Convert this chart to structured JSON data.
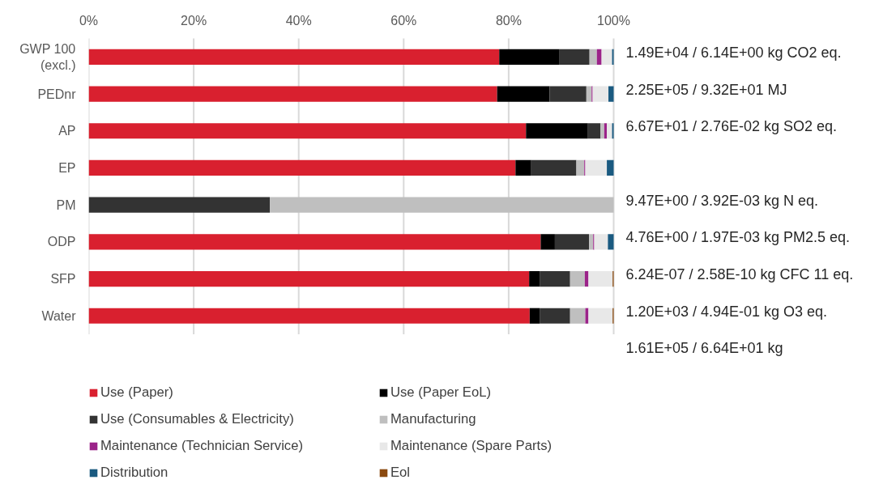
{
  "chart_data": {
    "type": "bar",
    "orientation": "horizontal",
    "stacked": true,
    "categories": [
      "GWP 100\n(excl.)",
      "PEDnr",
      "AP",
      "EP",
      "PM",
      "ODP",
      "SFP",
      "Water"
    ],
    "series": [
      {
        "name": "Use (Paper)",
        "color": "#d9202f",
        "values": [
          78.2,
          77.8,
          83.3,
          81.3,
          0,
          86.1,
          83.9,
          84.0
        ]
      },
      {
        "name": "Use (Paper EoL)",
        "color": "#000000",
        "values": [
          11.5,
          10.0,
          11.8,
          3.0,
          0,
          2.7,
          2.0,
          1.9
        ]
      },
      {
        "name": "Use (Consumables & Electricity)",
        "color": "#333333",
        "values": [
          5.7,
          7.0,
          2.4,
          8.6,
          34.5,
          6.5,
          5.8,
          5.8
        ]
      },
      {
        "name": "Manufacturing",
        "color": "#bfbfbf",
        "values": [
          1.4,
          1.0,
          0.7,
          1.5,
          65.5,
          0.8,
          2.8,
          2.9
        ]
      },
      {
        "name": "Maintenance (Technician Service)",
        "color": "#9b2389",
        "values": [
          0.9,
          0.2,
          0.5,
          0.2,
          0,
          0.2,
          0.7,
          0.6
        ]
      },
      {
        "name": "Maintenance (Spare Parts)",
        "color": "#e8e8e8",
        "values": [
          2.0,
          3.0,
          1.0,
          4.1,
          0,
          2.6,
          4.6,
          4.6
        ]
      },
      {
        "name": "Distribution",
        "color": "#1a5a80",
        "values": [
          0.3,
          1.0,
          0.3,
          1.3,
          0,
          1.1,
          0,
          0
        ]
      },
      {
        "name": "Eol",
        "color": "#8b4a0f",
        "values": [
          0,
          0,
          0,
          0,
          0,
          0,
          0.2,
          0.2
        ]
      }
    ],
    "xlim": [
      0,
      100
    ],
    "xticks": [
      {
        "value": 0,
        "label": "0%"
      },
      {
        "value": 20,
        "label": "20%"
      },
      {
        "value": 40,
        "label": "40%"
      },
      {
        "value": 60,
        "label": "60%"
      },
      {
        "value": 80,
        "label": "80%"
      },
      {
        "value": 100,
        "label": "100%"
      }
    ],
    "grid": "x",
    "legend": "bottom",
    "annotations": [
      "1.49E+04 / 6.14E+00 kg CO2 eq.",
      "2.25E+05 / 9.32E+01 MJ",
      "6.67E+01 / 2.76E-02 kg SO2 eq.",
      "9.47E+00 / 3.92E-03 kg N eq.",
      "4.76E+00 / 1.97E-03 kg PM2.5 eq.",
      "6.24E-07 / 2.58E-10 kg CFC 11 eq.",
      "1.20E+03 / 4.94E-01 kg O3 eq.",
      "1.61E+05 / 6.64E+01 kg"
    ]
  }
}
